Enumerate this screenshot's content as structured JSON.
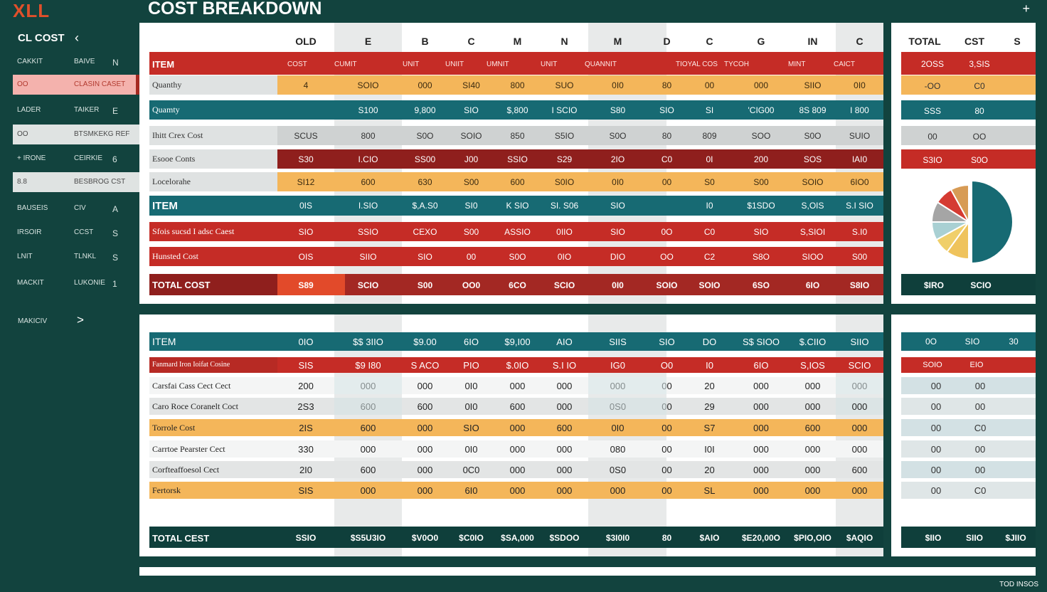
{
  "app": {
    "logo": "XLL",
    "title": "COST BREAKDOWN",
    "plus": "+"
  },
  "sidebar": {
    "header": "CL COST",
    "rows": [
      {
        "a": "CAKKIT",
        "b": "BAIVE",
        "c": "N",
        "style": "dark"
      },
      {
        "a": "OO",
        "b": "CLASIN CASET",
        "c": "",
        "style": "pink"
      },
      {
        "a": "LADER",
        "b": "TAIKER",
        "c": "E",
        "style": "dark"
      },
      {
        "a": "OO",
        "b": "BTSMKEKG REF",
        "c": "",
        "style": "light"
      },
      {
        "a": "+ IRONE",
        "b": "CEIRKIE",
        "c": "6",
        "style": "dark"
      },
      {
        "a": "8.8",
        "b": "BESBROG CST",
        "c": "",
        "style": "light"
      },
      {
        "a": "BAUSEIS",
        "b": "CIV",
        "c": "A",
        "style": "dark"
      },
      {
        "a": "IRSOIR",
        "b": "CCST",
        "c": "S",
        "style": "dark"
      },
      {
        "a": "LNIT",
        "b": "TLNKL",
        "c": "S",
        "style": "dark"
      },
      {
        "a": "MACKIT",
        "b": "LUKONIE",
        "c": "1",
        "style": "dark"
      }
    ],
    "footer": "MAKICIV",
    "footer_chevron": ">"
  },
  "top_table": {
    "columns": [
      "OLD",
      "E",
      "B",
      "C",
      "M",
      "N",
      "M",
      "D",
      "C",
      "G",
      "IN",
      "C"
    ],
    "subheader": {
      "label": "ITEM",
      "cells": [
        "COST",
        "CUMIT",
        "",
        "UNIT",
        "UNIIT",
        "UMNIT",
        "UNIT",
        "QUANNIT",
        "",
        "TIOYAL COS",
        "TYCOH",
        "",
        "MINT",
        "CAICT"
      ]
    },
    "rows": [
      {
        "label": "Quanthy",
        "style": "orange",
        "cells": [
          "4",
          "SOIO",
          "000",
          "SI40",
          "800",
          "SUO",
          "0I0",
          "80",
          "00",
          "000",
          "SIIO",
          "0I0"
        ]
      },
      {
        "label": "Quamty",
        "style": "teal",
        "cells": [
          "",
          "S100",
          "9,800",
          "SIO",
          "$,800",
          "I SCIO",
          "S80",
          "SIO",
          "SI",
          "'CIG00",
          "8S 809",
          "I 800"
        ]
      },
      {
        "label": "Ihitt Crex Cost",
        "style": "gray",
        "cells": [
          "SCUS",
          "800",
          "S0O",
          "SOIO",
          "850",
          "S5IO",
          "S0O",
          "80",
          "809",
          "SOO",
          "S0O",
          "SUIO"
        ]
      },
      {
        "label": "Esooe Conts",
        "style": "red",
        "cells": [
          "S30",
          "I.CIO",
          "SS00",
          "J00",
          "SSIO",
          "S29",
          "2IO",
          "C0",
          "0I",
          "200",
          "SOS",
          "IAI0"
        ]
      },
      {
        "label": "Locelorahe",
        "style": "orange",
        "cells": [
          "SI12",
          "600",
          "630",
          "S00",
          "600",
          "S0IO",
          "0I0",
          "00",
          "S0",
          "S00",
          "SOIO",
          "6IO0"
        ]
      },
      {
        "label": "ITEM",
        "style": "teal-bold",
        "cells": [
          "0IS",
          "I.SIO",
          "$,A.S0",
          "SI0",
          "K SIO",
          "SI. S06",
          "SIO",
          "",
          "I0",
          "$1SDO",
          "S,OIS",
          "S.I SIO"
        ]
      },
      {
        "label": "Sfois sucsd I adsc Caest",
        "style": "red2",
        "cells": [
          "SIO",
          "SSIO",
          "CEXO",
          "S00",
          "ASSIO",
          "0IIO",
          "SIO",
          "0O",
          "C0",
          "SIO",
          "S,SIOI",
          "S.I0"
        ]
      },
      {
        "label": "Hunsted Cost",
        "style": "red2",
        "cells": [
          "OIS",
          "SIIO",
          "SIO",
          "00",
          "S0O",
          "0IO",
          "DIO",
          "OO",
          "C2",
          "S8O",
          "SIOO",
          "S00"
        ]
      }
    ],
    "total": {
      "label": "TOTAL COST",
      "cells": [
        "S89",
        "SCIO",
        "S00",
        "OO0",
        "6CO",
        "SCIO",
        "0I0",
        "SOIO",
        "SOIO",
        "6SO",
        "6IO",
        "S8IO"
      ]
    }
  },
  "top_right": {
    "headers": [
      "TOTAL",
      "CST",
      "S"
    ],
    "rows": [
      {
        "style": "red",
        "cells": [
          "2OSS",
          "3,SIS"
        ]
      },
      {
        "style": "orange",
        "cells": [
          "-OO",
          "C0"
        ]
      },
      {
        "style": "teal",
        "cells": [
          "SSS",
          "80"
        ]
      },
      {
        "style": "gray",
        "cells": [
          "00",
          "OO"
        ]
      },
      {
        "style": "red",
        "cells": [
          "S3IO",
          "S0O"
        ]
      }
    ],
    "total": [
      "$IRO",
      "SCIO"
    ]
  },
  "pie": {
    "slices": [
      {
        "value": 50,
        "color": "#176a73"
      },
      {
        "value": 10,
        "color": "#efc35c"
      },
      {
        "value": 7,
        "color": "#f0cf6a"
      },
      {
        "value": 8,
        "color": "#a9d0d3"
      },
      {
        "value": 9,
        "color": "#a5a5a5"
      },
      {
        "value": 8,
        "color": "#d53b32"
      },
      {
        "value": 8,
        "color": "#d79b55"
      }
    ]
  },
  "bottom_table": {
    "item": {
      "label": "ITEM",
      "cells": [
        "0IO",
        "$$ 3IIO",
        "$9.00",
        "6IO",
        "$9,I00",
        "AIO",
        "SIIS",
        "SIO",
        "DO",
        "S$ SIOO",
        "$.CIIO",
        "SIIO"
      ]
    },
    "sub": {
      "label": "Fanmard Iron   Ioifat Cosine",
      "cells": [
        "SIS",
        "$9 I80",
        "S ACO",
        "PIO",
        "$.0IO",
        "S.I IO",
        "IG0",
        "O0",
        "I0",
        "6IO",
        "S,IOS",
        "SCIO"
      ]
    },
    "rows": [
      {
        "label": "Carsfai Cass Cect Cect",
        "style": "white",
        "cells": [
          "200",
          "000",
          "000",
          "0I0",
          "000",
          "000",
          "000",
          "00",
          "20",
          "000",
          "000",
          "000"
        ]
      },
      {
        "label": "Caro Roce Coranelt Coct",
        "style": "gray",
        "cells": [
          "2S3",
          "600",
          "600",
          "0I0",
          "600",
          "000",
          "0S0",
          "00",
          "29",
          "000",
          "000",
          "000"
        ]
      },
      {
        "label": "Torrole Cost",
        "style": "orange",
        "cells": [
          "2IS",
          "600",
          "000",
          "SIO",
          "000",
          "600",
          "0I0",
          "00",
          "S7",
          "000",
          "600",
          "000"
        ]
      },
      {
        "label": "Carrtoe Pearster Cect",
        "style": "white",
        "cells": [
          "330",
          "000",
          "000",
          "0I0",
          "000",
          "000",
          "080",
          "00",
          "I0I",
          "000",
          "000",
          "000"
        ]
      },
      {
        "label": "Corfteaffoesol Cect",
        "style": "gray",
        "cells": [
          "2I0",
          "600",
          "000",
          "0C0",
          "000",
          "000",
          "0S0",
          "00",
          "20",
          "000",
          "000",
          "600"
        ]
      },
      {
        "label": "Fertorsk",
        "style": "orange",
        "cells": [
          "SIS",
          "000",
          "000",
          "6I0",
          "000",
          "000",
          "000",
          "00",
          "SL",
          "000",
          "000",
          "000"
        ]
      }
    ],
    "total": {
      "label": "TOTAL CEST",
      "cells": [
        "SSIO",
        "$S5U3IO",
        "$V0O0",
        "$C0IO",
        "$SA,000",
        "$SDOO",
        "$3I0I0",
        "80",
        "$AIO",
        "$E20,00O",
        "$PIO,OIO",
        "$AQIO"
      ]
    }
  },
  "bottom_right": {
    "item": [
      "0O",
      "SIO",
      "30"
    ],
    "sub": [
      "SOIO",
      "EIO"
    ],
    "rows": [
      [
        "00",
        "00"
      ],
      [
        "00",
        "00"
      ],
      [
        "00",
        "C0"
      ],
      [
        "00",
        "00"
      ],
      [
        "00",
        "00"
      ],
      [
        "00",
        "C0"
      ]
    ],
    "total": [
      "$IIO",
      "SIIO",
      "$JIIO"
    ]
  },
  "footer": {
    "text": "TOD INSOS"
  },
  "colors": {
    "teal": "#176a73",
    "red": "#c52c26",
    "darkred": "#8f1f1d",
    "orange": "#f4b65a",
    "gray": "#d9dbdb",
    "bg": "#12433e",
    "total": "#0f3f3b"
  }
}
